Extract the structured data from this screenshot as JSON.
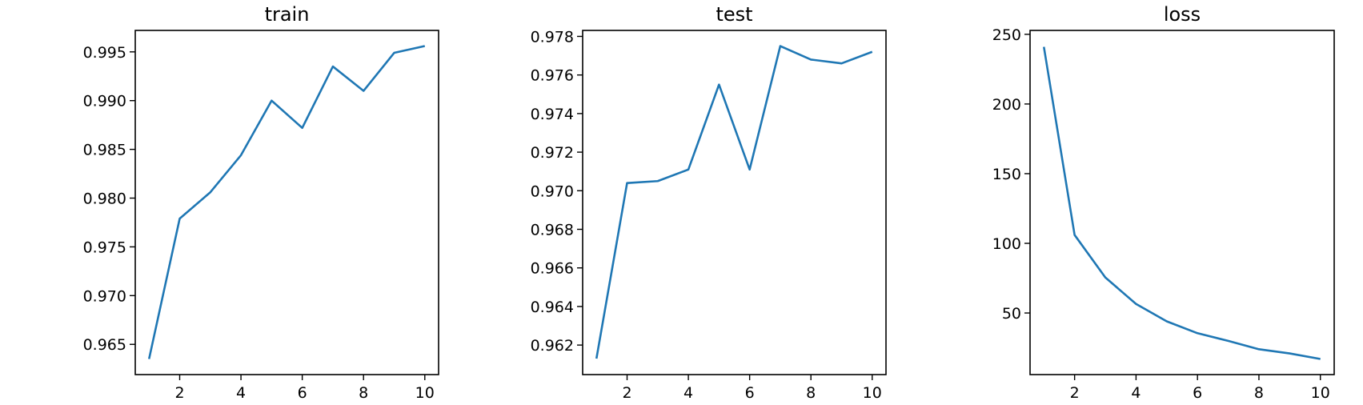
{
  "chart_data": [
    {
      "type": "line",
      "title": "train",
      "xlabel": "",
      "ylabel": "",
      "x": [
        1,
        2,
        3,
        4,
        5,
        6,
        7,
        8,
        9,
        10
      ],
      "series": [
        {
          "values": [
            0.9635,
            0.9779,
            0.9806,
            0.9844,
            0.99,
            0.9872,
            0.9935,
            0.991,
            0.9949,
            0.9956
          ]
        }
      ],
      "xlim": [
        0.55,
        10.45
      ],
      "ylim": [
        0.9619,
        0.9972
      ],
      "xticks": [
        2,
        4,
        6,
        8,
        10
      ],
      "yticks": [
        0.965,
        0.97,
        0.975,
        0.98,
        0.985,
        0.99,
        0.995
      ],
      "ytick_labels": [
        "0.965",
        "0.970",
        "0.975",
        "0.980",
        "0.985",
        "0.990",
        "0.995"
      ],
      "grid": false
    },
    {
      "type": "line",
      "title": "test",
      "xlabel": "",
      "ylabel": "",
      "x": [
        1,
        2,
        3,
        4,
        5,
        6,
        7,
        8,
        9,
        10
      ],
      "series": [
        {
          "values": [
            0.9613,
            0.9704,
            0.9705,
            0.9711,
            0.9755,
            0.9711,
            0.9775,
            0.9768,
            0.9766,
            0.9772
          ]
        }
      ],
      "xlim": [
        0.55,
        10.45
      ],
      "ylim": [
        0.96047,
        0.97831
      ],
      "xticks": [
        2,
        4,
        6,
        8,
        10
      ],
      "yticks": [
        0.962,
        0.964,
        0.966,
        0.968,
        0.97,
        0.972,
        0.974,
        0.976,
        0.978
      ],
      "ytick_labels": [
        "0.962",
        "0.964",
        "0.966",
        "0.968",
        "0.970",
        "0.972",
        "0.974",
        "0.976",
        "0.978"
      ],
      "grid": false
    },
    {
      "type": "line",
      "title": "loss",
      "xlabel": "",
      "ylabel": "",
      "x": [
        1,
        2,
        3,
        4,
        5,
        6,
        7,
        8,
        9,
        10
      ],
      "series": [
        {
          "values": [
            241,
            106,
            75.5,
            56.5,
            44,
            35.5,
            30,
            24,
            21,
            17
          ]
        }
      ],
      "xlim": [
        0.55,
        10.45
      ],
      "ylim": [
        5.8,
        252.8
      ],
      "xticks": [
        2,
        4,
        6,
        8,
        10
      ],
      "yticks": [
        50,
        100,
        150,
        200,
        250
      ],
      "ytick_labels": [
        "50",
        "100",
        "150",
        "200",
        "250"
      ],
      "grid": false
    }
  ],
  "colors": {
    "line": "#1f77b4",
    "axes": "#000000"
  }
}
